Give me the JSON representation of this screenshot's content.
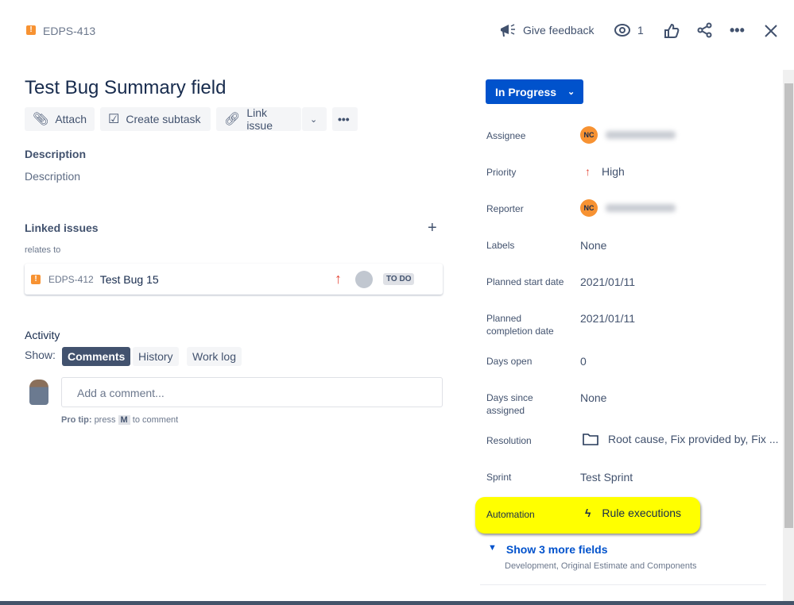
{
  "header": {
    "issue_key": "EDPS-413",
    "feedback": "Give feedback",
    "watchers": "1"
  },
  "issue": {
    "title": "Test Bug Summary field"
  },
  "toolbar": {
    "attach": "Attach",
    "create_subtask": "Create subtask",
    "link_issue": "Link issue"
  },
  "description": {
    "heading": "Description",
    "placeholder": "Description"
  },
  "linked": {
    "heading": "Linked issues",
    "relation": "relates to",
    "item": {
      "key": "EDPS-412",
      "summary": "Test Bug 15",
      "status": "TO DO"
    }
  },
  "activity": {
    "heading": "Activity",
    "show": "Show:",
    "tabs": [
      "Comments",
      "History",
      "Work log"
    ],
    "comment_placeholder": "Add a comment...",
    "tip_bold": "Pro tip:",
    "tip_press": "press",
    "tip_key": "M",
    "tip_rest": "to comment"
  },
  "status": {
    "label": "In Progress",
    "color": "#0052cc"
  },
  "fields": {
    "assignee": {
      "label": "Assignee",
      "initials": "NC"
    },
    "priority": {
      "label": "Priority",
      "value": "High"
    },
    "reporter": {
      "label": "Reporter",
      "initials": "NC"
    },
    "labels": {
      "label": "Labels",
      "value": "None"
    },
    "planned_start": {
      "label": "Planned start date",
      "value": "2021/01/11"
    },
    "planned_completion": {
      "label": "Planned completion date",
      "value": "2021/01/11"
    },
    "days_open": {
      "label": "Days open",
      "value": "0"
    },
    "days_since": {
      "label": "Days since assigned",
      "value": "None"
    },
    "resolution": {
      "label": "Resolution",
      "value": "Root cause, Fix provided by, Fix ..."
    },
    "sprint": {
      "label": "Sprint",
      "value": "Test Sprint"
    },
    "automation": {
      "label": "Automation",
      "value": "Rule executions",
      "highlight": "#ffff00"
    }
  },
  "more": {
    "label": "Show 3 more fields",
    "sub": "Development, Original Estimate and Components"
  }
}
